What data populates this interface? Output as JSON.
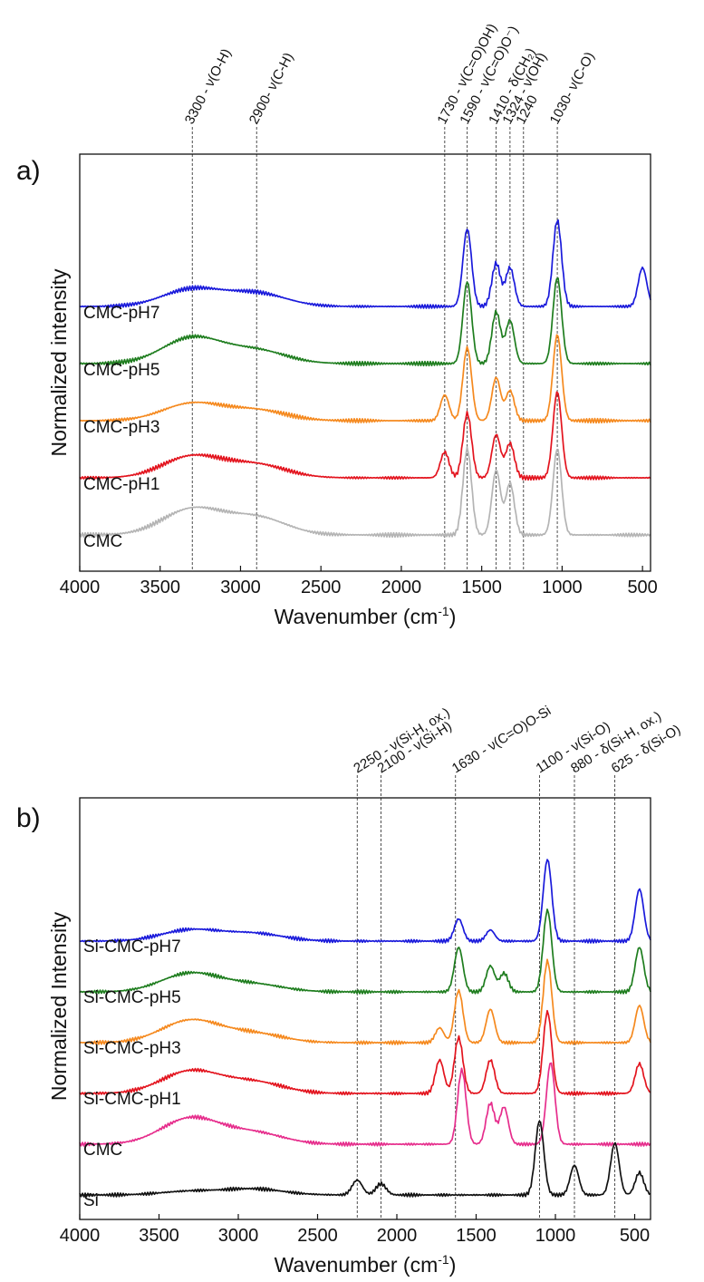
{
  "chart_data": [
    {
      "panel": "a)",
      "type": "line",
      "xlabel": "Wavenumber (cm",
      "xlabel_sup": "-1",
      "xlabel_end": ")",
      "ylabel": "Normalized intensity",
      "xlim": [
        4000,
        450
      ],
      "x_ticks": [
        4000,
        3500,
        3000,
        2500,
        2000,
        1500,
        1000,
        500
      ],
      "guides": [
        {
          "pos": 3300,
          "text": "3300 - ν(O-H)"
        },
        {
          "pos": 2900,
          "text": "2900- ν(C-H)"
        },
        {
          "pos": 1730,
          "text": "1730 - ν(C=O)OH)"
        },
        {
          "pos": 1590,
          "text": "1590 - ν(C=O)O⁻)"
        },
        {
          "pos": 1410,
          "text": "1410 - δ(CH₂)"
        },
        {
          "pos": 1324,
          "text": "1324 - ν(OH)"
        },
        {
          "pos": 1240,
          "text": "1240"
        },
        {
          "pos": 1030,
          "text": "1030- ν(C-O)"
        }
      ],
      "series": [
        {
          "name": "CMC-pH7",
          "color": "#1a1adb",
          "offset": 4,
          "peaks": [
            [
              3300,
              0.2
            ],
            [
              2900,
              0.15
            ],
            [
              1590,
              0.9
            ],
            [
              1410,
              0.5
            ],
            [
              1324,
              0.45
            ],
            [
              1030,
              1.0
            ],
            [
              500,
              0.45
            ]
          ]
        },
        {
          "name": "CMC-pH5",
          "color": "#1e7d1e",
          "offset": 3,
          "peaks": [
            [
              3300,
              0.3
            ],
            [
              2900,
              0.15
            ],
            [
              1590,
              0.95
            ],
            [
              1410,
              0.6
            ],
            [
              1324,
              0.5
            ],
            [
              1030,
              1.0
            ]
          ]
        },
        {
          "name": "CMC-pH3",
          "color": "#f5891e",
          "offset": 2,
          "peaks": [
            [
              3300,
              0.2
            ],
            [
              2900,
              0.12
            ],
            [
              1730,
              0.3
            ],
            [
              1590,
              0.85
            ],
            [
              1410,
              0.5
            ],
            [
              1324,
              0.35
            ],
            [
              1030,
              1.0
            ]
          ]
        },
        {
          "name": "CMC-pH1",
          "color": "#e3141e",
          "offset": 1,
          "peaks": [
            [
              3300,
              0.25
            ],
            [
              2900,
              0.15
            ],
            [
              1730,
              0.3
            ],
            [
              1590,
              0.75
            ],
            [
              1410,
              0.5
            ],
            [
              1324,
              0.4
            ],
            [
              1030,
              1.0
            ]
          ]
        },
        {
          "name": "CMC",
          "color": "#b4b4b4",
          "offset": 0,
          "peaks": [
            [
              3300,
              0.3
            ],
            [
              2900,
              0.2
            ],
            [
              1590,
              1.0
            ],
            [
              1410,
              0.75
            ],
            [
              1324,
              0.6
            ],
            [
              1030,
              1.0
            ]
          ]
        }
      ]
    },
    {
      "panel": "b)",
      "type": "line",
      "xlabel": "Wavenumber (cm",
      "xlabel_sup": "-1",
      "xlabel_end": ")",
      "ylabel": "Normalized Intensity",
      "xlim": [
        4000,
        400
      ],
      "x_ticks": [
        4000,
        3500,
        3000,
        2500,
        2000,
        1500,
        1000,
        500
      ],
      "guides": [
        {
          "pos": 2250,
          "text": "2250 - ν(Si-H, ox.)"
        },
        {
          "pos": 2100,
          "text": "2100 - ν(Si-H)"
        },
        {
          "pos": 1630,
          "text": "1630 - ν(C=O)O-Si"
        },
        {
          "pos": 1100,
          "text": "1100 - ν(Si-O)"
        },
        {
          "pos": 880,
          "text": "880 - δ(Si-H, ox.)"
        },
        {
          "pos": 625,
          "text": "625 - δ(Si-O)"
        }
      ],
      "series": [
        {
          "name": "Si-CMC-pH7",
          "color": "#1a1adb",
          "offset": 5,
          "peaks": [
            [
              3300,
              0.15
            ],
            [
              2900,
              0.1
            ],
            [
              1610,
              0.3
            ],
            [
              1410,
              0.15
            ],
            [
              1050,
              1.1
            ],
            [
              470,
              0.7
            ]
          ]
        },
        {
          "name": "Si-CMC-pH5",
          "color": "#1e7d1e",
          "offset": 4,
          "peaks": [
            [
              3300,
              0.25
            ],
            [
              2900,
              0.1
            ],
            [
              1610,
              0.6
            ],
            [
              1410,
              0.35
            ],
            [
              1324,
              0.25
            ],
            [
              1050,
              1.1
            ],
            [
              470,
              0.6
            ]
          ]
        },
        {
          "name": "Si-CMC-pH3",
          "color": "#f5891e",
          "offset": 3,
          "peaks": [
            [
              3300,
              0.3
            ],
            [
              2900,
              0.12
            ],
            [
              1730,
              0.2
            ],
            [
              1610,
              0.7
            ],
            [
              1410,
              0.45
            ],
            [
              1050,
              1.1
            ],
            [
              470,
              0.5
            ]
          ]
        },
        {
          "name": "Si-CMC-pH1",
          "color": "#e3141e",
          "offset": 2,
          "peaks": [
            [
              3300,
              0.3
            ],
            [
              2900,
              0.15
            ],
            [
              1730,
              0.45
            ],
            [
              1610,
              0.75
            ],
            [
              1410,
              0.45
            ],
            [
              1050,
              1.1
            ],
            [
              470,
              0.4
            ]
          ]
        },
        {
          "name": "CMC",
          "color": "#e62d8c",
          "offset": 1,
          "peaks": [
            [
              3300,
              0.35
            ],
            [
              2900,
              0.15
            ],
            [
              1590,
              1.0
            ],
            [
              1410,
              0.55
            ],
            [
              1324,
              0.5
            ],
            [
              1030,
              1.1
            ]
          ]
        },
        {
          "name": "Si",
          "color": "#111111",
          "offset": 0,
          "peaks": [
            [
              3300,
              0.05
            ],
            [
              2900,
              0.08
            ],
            [
              2250,
              0.2
            ],
            [
              2100,
              0.15
            ],
            [
              1100,
              1.0
            ],
            [
              880,
              0.4
            ],
            [
              625,
              0.7
            ],
            [
              470,
              0.3
            ]
          ]
        }
      ]
    }
  ]
}
